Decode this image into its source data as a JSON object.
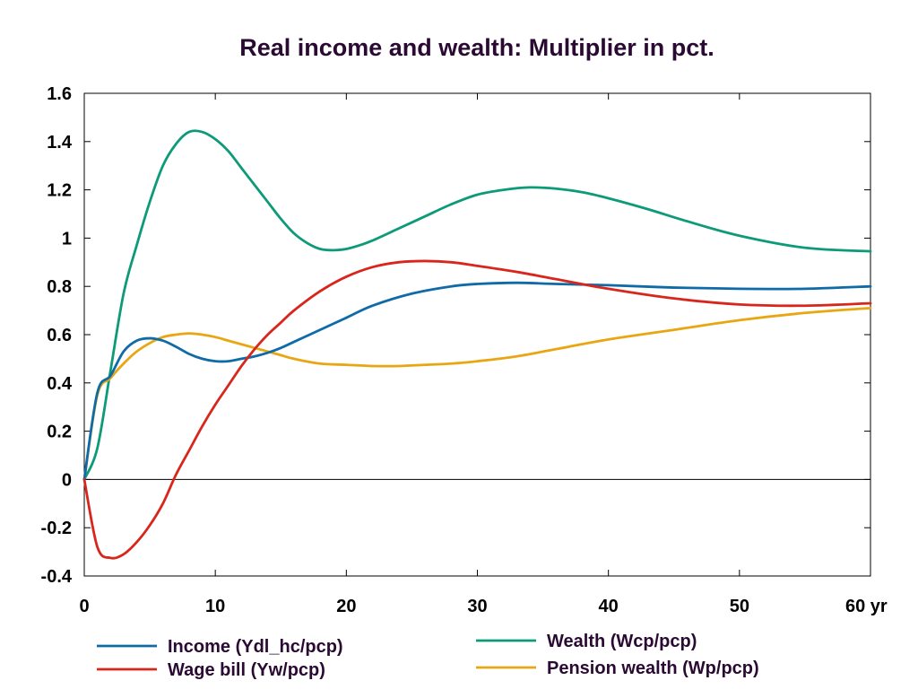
{
  "chart_data": {
    "type": "line",
    "title": "Real income and wealth: Multiplier in pct.",
    "xlabel": "",
    "ylabel": "",
    "xlim": [
      0,
      60
    ],
    "ylim": [
      -0.4,
      1.6
    ],
    "xticks": [
      0,
      10,
      20,
      30,
      40,
      50,
      60
    ],
    "xtick_labels": [
      "0",
      "10",
      "20",
      "30",
      "40",
      "50",
      "60 yr"
    ],
    "yticks": [
      -0.4,
      -0.2,
      0,
      0.2,
      0.4,
      0.6,
      0.8,
      1.0,
      1.2,
      1.4,
      1.6
    ],
    "ytick_labels": [
      "-0.4",
      "-0.2",
      "0",
      "0.2",
      "0.4",
      "0.6",
      "0.8",
      "1",
      "1.2",
      "1.4",
      "1.6"
    ],
    "grid": false,
    "zero_line": true,
    "legend": "bottom",
    "series": [
      {
        "name": "Income (Ydl_hc/pcp)",
        "color": "#0f6ba8",
        "x": [
          0,
          1,
          2,
          3,
          4,
          5,
          6,
          7,
          8,
          9,
          10,
          11,
          12,
          13,
          14,
          15,
          16,
          18,
          20,
          22,
          25,
          28,
          30,
          33,
          36,
          40,
          45,
          50,
          55,
          60
        ],
        "y": [
          0,
          0.36,
          0.43,
          0.53,
          0.575,
          0.585,
          0.575,
          0.55,
          0.52,
          0.5,
          0.49,
          0.49,
          0.5,
          0.51,
          0.525,
          0.545,
          0.57,
          0.62,
          0.67,
          0.72,
          0.77,
          0.8,
          0.81,
          0.815,
          0.81,
          0.805,
          0.795,
          0.79,
          0.79,
          0.8
        ]
      },
      {
        "name": "Wage bill (Yw/pcp)",
        "color": "#d9261c",
        "x": [
          0,
          1,
          2,
          3,
          4,
          5,
          6,
          7,
          8,
          9,
          10,
          11,
          12,
          13,
          14,
          15,
          16,
          18,
          20,
          22,
          24,
          26,
          28,
          30,
          33,
          36,
          40,
          45,
          50,
          55,
          60
        ],
        "y": [
          0,
          -0.28,
          -0.325,
          -0.31,
          -0.26,
          -0.19,
          -0.1,
          0.02,
          0.12,
          0.22,
          0.31,
          0.39,
          0.47,
          0.54,
          0.6,
          0.65,
          0.7,
          0.78,
          0.84,
          0.88,
          0.9,
          0.905,
          0.9,
          0.885,
          0.86,
          0.83,
          0.79,
          0.75,
          0.725,
          0.72,
          0.73
        ]
      },
      {
        "name": "Wealth (Wcp/pcp)",
        "color": "#0c9a78",
        "x": [
          0,
          1,
          2,
          3,
          4,
          5,
          6,
          7,
          8,
          9,
          10,
          11,
          12,
          13,
          14,
          15,
          16,
          17,
          18,
          19,
          20,
          21,
          22,
          24,
          26,
          28,
          30,
          32,
          34,
          36,
          38,
          40,
          43,
          46,
          50,
          55,
          60
        ],
        "y": [
          0,
          0.13,
          0.45,
          0.77,
          0.97,
          1.15,
          1.3,
          1.39,
          1.44,
          1.44,
          1.41,
          1.36,
          1.29,
          1.22,
          1.15,
          1.08,
          1.02,
          0.98,
          0.955,
          0.95,
          0.955,
          0.97,
          0.99,
          1.04,
          1.09,
          1.14,
          1.18,
          1.2,
          1.21,
          1.205,
          1.19,
          1.165,
          1.12,
          1.07,
          1.01,
          0.96,
          0.945
        ]
      },
      {
        "name": "Pension wealth (Wp/pcp)",
        "color": "#e8a712",
        "x": [
          0,
          1,
          2,
          3,
          4,
          5,
          6,
          7,
          8,
          9,
          10,
          11,
          12,
          13,
          14,
          15,
          16,
          18,
          20,
          22,
          24,
          26,
          28,
          30,
          33,
          36,
          40,
          45,
          50,
          55,
          60
        ],
        "y": [
          0,
          0.35,
          0.42,
          0.48,
          0.53,
          0.565,
          0.59,
          0.6,
          0.605,
          0.6,
          0.59,
          0.575,
          0.56,
          0.545,
          0.53,
          0.515,
          0.5,
          0.48,
          0.475,
          0.47,
          0.47,
          0.475,
          0.48,
          0.49,
          0.51,
          0.54,
          0.58,
          0.62,
          0.66,
          0.69,
          0.71
        ]
      }
    ]
  }
}
